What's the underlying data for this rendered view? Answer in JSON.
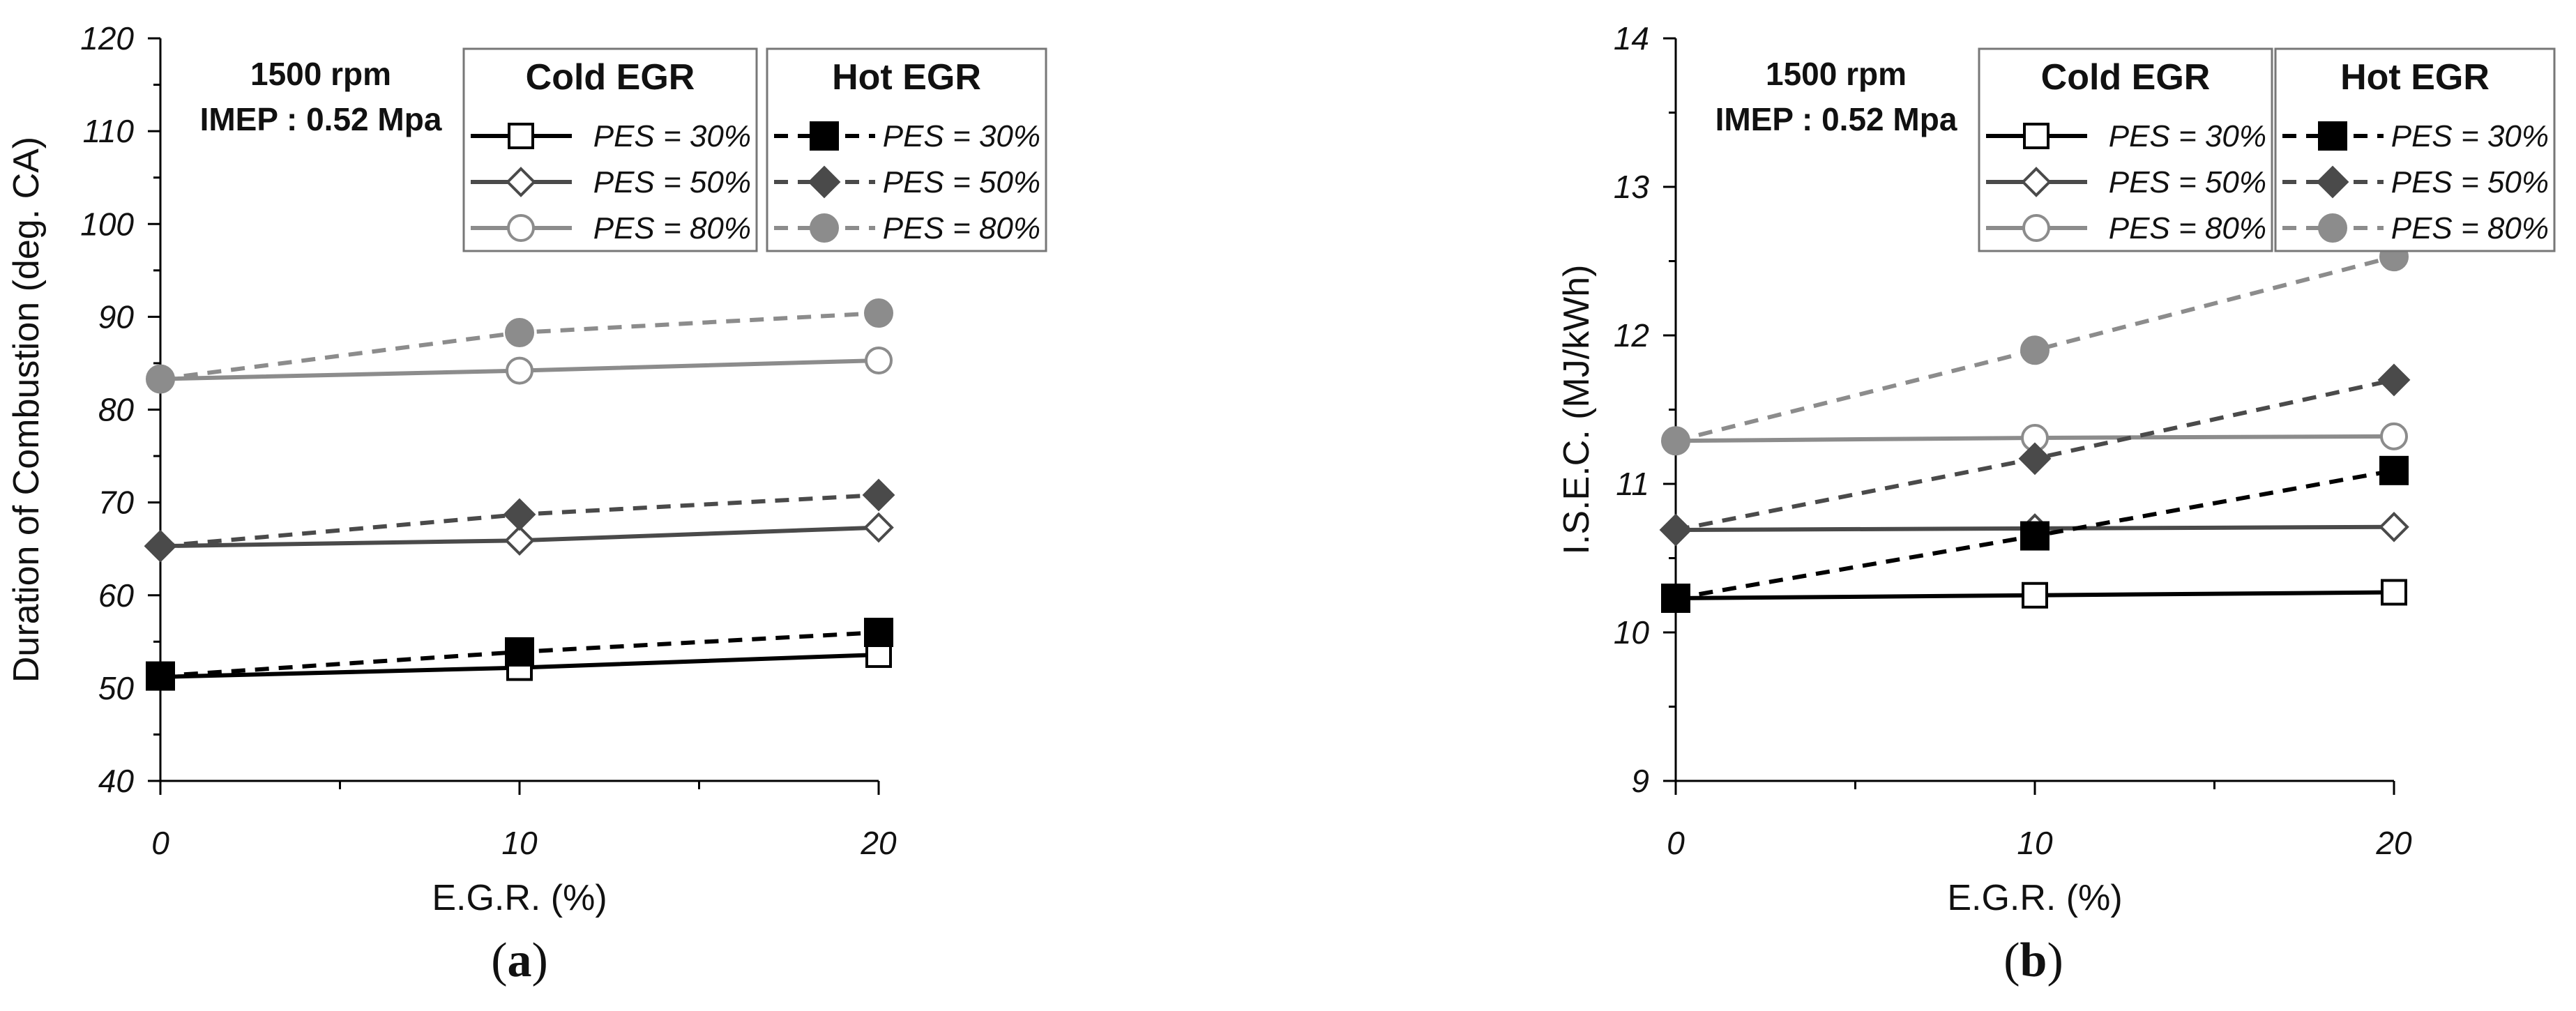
{
  "chart_data": [
    {
      "type": "line",
      "panel_label": "(a)",
      "panel_letter": "a",
      "xlabel": "E.G.R. (%)",
      "ylabel": "Duration of Combustion (deg. CA)",
      "condition": [
        "1500 rpm",
        "IMEP : 0.52 Mpa"
      ],
      "xlim": [
        0,
        20
      ],
      "ylim": [
        40,
        120
      ],
      "x_ticks": [
        0,
        10,
        20
      ],
      "y_ticks": [
        40,
        50,
        60,
        70,
        80,
        90,
        100,
        110,
        120
      ],
      "x": [
        0,
        10,
        20
      ],
      "legend_groups": [
        "Cold EGR",
        "Hot EGR"
      ],
      "series": [
        {
          "name": "PES = 30%",
          "group": "Cold EGR",
          "style": "solid",
          "marker": "square-open",
          "color": "#000000",
          "values": [
            51.2,
            52.2,
            53.6
          ]
        },
        {
          "name": "PES = 50%",
          "group": "Cold EGR",
          "style": "solid",
          "marker": "diamond-open",
          "color": "#4a4a4a",
          "values": [
            65.3,
            65.9,
            67.3
          ]
        },
        {
          "name": "PES = 80%",
          "group": "Cold EGR",
          "style": "solid",
          "marker": "circle-open",
          "color": "#8c8c8c",
          "values": [
            83.3,
            84.2,
            85.3
          ]
        },
        {
          "name": "PES = 30%",
          "group": "Hot EGR",
          "style": "dashed",
          "marker": "square-filled",
          "color": "#000000",
          "values": [
            51.3,
            53.9,
            56.0
          ]
        },
        {
          "name": "PES = 50%",
          "group": "Hot EGR",
          "style": "dashed",
          "marker": "diamond-filled",
          "color": "#4a4a4a",
          "values": [
            65.3,
            68.7,
            70.8
          ]
        },
        {
          "name": "PES = 80%",
          "group": "Hot EGR",
          "style": "dashed",
          "marker": "circle-filled",
          "color": "#8c8c8c",
          "values": [
            83.3,
            88.3,
            90.4
          ]
        }
      ]
    },
    {
      "type": "line",
      "panel_label": "(b)",
      "panel_letter": "b",
      "xlabel": "E.G.R. (%)",
      "ylabel": "I.S.E.C. (MJ/kWh)",
      "condition": [
        "1500 rpm",
        "IMEP : 0.52 Mpa"
      ],
      "xlim": [
        0,
        20
      ],
      "ylim": [
        9,
        14
      ],
      "x_ticks": [
        0,
        10,
        20
      ],
      "y_ticks": [
        9,
        10,
        11,
        12,
        13,
        14
      ],
      "x": [
        0,
        10,
        20
      ],
      "legend_groups": [
        "Cold EGR",
        "Hot EGR"
      ],
      "series": [
        {
          "name": "PES = 30%",
          "group": "Cold EGR",
          "style": "solid",
          "marker": "square-open",
          "color": "#000000",
          "values": [
            10.23,
            10.25,
            10.27
          ]
        },
        {
          "name": "PES = 50%",
          "group": "Cold EGR",
          "style": "solid",
          "marker": "diamond-open",
          "color": "#4a4a4a",
          "values": [
            10.69,
            10.7,
            10.71
          ]
        },
        {
          "name": "PES = 80%",
          "group": "Cold EGR",
          "style": "solid",
          "marker": "circle-open",
          "color": "#8c8c8c",
          "values": [
            11.29,
            11.31,
            11.32
          ]
        },
        {
          "name": "PES = 30%",
          "group": "Hot EGR",
          "style": "dashed",
          "marker": "square-filled",
          "color": "#000000",
          "values": [
            10.23,
            10.65,
            11.09
          ]
        },
        {
          "name": "PES = 50%",
          "group": "Hot EGR",
          "style": "dashed",
          "marker": "diamond-filled",
          "color": "#4a4a4a",
          "values": [
            10.69,
            11.17,
            11.7
          ]
        },
        {
          "name": "PES = 80%",
          "group": "Hot EGR",
          "style": "dashed",
          "marker": "circle-filled",
          "color": "#8c8c8c",
          "values": [
            11.29,
            11.9,
            12.53
          ]
        }
      ]
    }
  ]
}
